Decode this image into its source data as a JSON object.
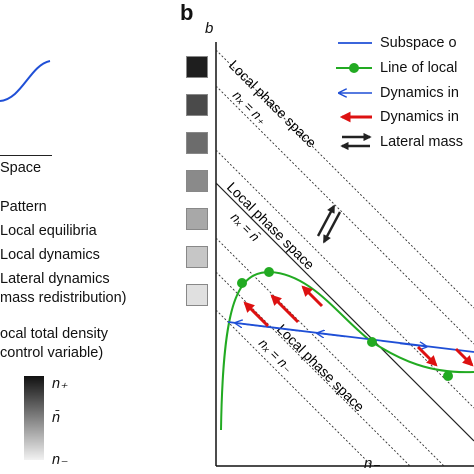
{
  "left_panel": {
    "axis_label": "Space",
    "legend_items": [
      "Pattern",
      "Local equilibria",
      "Local dynamics",
      "Lateral dynamics",
      "mass redistribution)"
    ],
    "density_title": [
      "ocal total density",
      "control variable)"
    ],
    "colorbar_ticks": {
      "top": "n₊",
      "mid": "n̄",
      "bottom": "n₋"
    }
  },
  "panel_b": {
    "panel_letter": "b",
    "y_axis_label": "b",
    "x_axis_label": "n₋",
    "phase_space_label": "Local phase space",
    "line_labels": {
      "plus": "nₓ = n₊",
      "mid": "nₓ = n̄",
      "minus": "nₓ = n₋"
    },
    "legend": [
      {
        "label": "Subspace o",
        "kind": "blue-line"
      },
      {
        "label": "Line of local",
        "kind": "green-line-dot"
      },
      {
        "label": "Dynamics in",
        "kind": "blue-arrow"
      },
      {
        "label": "Dynamics in",
        "kind": "red-arrow"
      },
      {
        "label": "Lateral mass",
        "kind": "double-arrow"
      }
    ],
    "gray_scale_swatches": [
      "#1e1e1e",
      "#4a4a4a",
      "#6c6c6c",
      "#8a8a8a",
      "#a8a8a8",
      "#c6c6c6",
      "#e0e0e0"
    ]
  },
  "colors": {
    "subspace_blue": "#1f4fd6",
    "equilibria_green": "#22aa22",
    "local_dynamics_red": "#dd1111",
    "pattern_blue": "#1f4fd6"
  }
}
